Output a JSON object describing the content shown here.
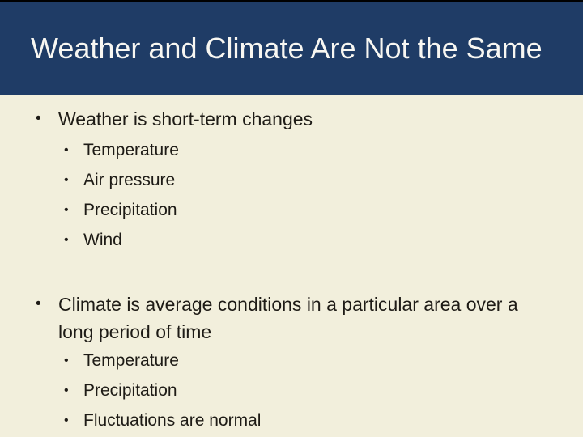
{
  "slide": {
    "title": "Weather and Climate Are Not the Same",
    "bullet_char": "•",
    "colors": {
      "header_bg": "#1F3C66",
      "body_bg": "#F2EFDC",
      "title_text": "#F8F7F2",
      "body_text": "#1E1B16",
      "top_border": "#000000"
    },
    "bullets": [
      {
        "text": "Weather is short-term changes",
        "children": [
          "Temperature",
          "Air pressure",
          "Precipitation",
          "Wind"
        ]
      },
      {
        "text": "Climate is average conditions in a particular area over a long period of time",
        "children": [
          "Temperature",
          "Precipitation",
          "Fluctuations are normal"
        ]
      }
    ]
  }
}
